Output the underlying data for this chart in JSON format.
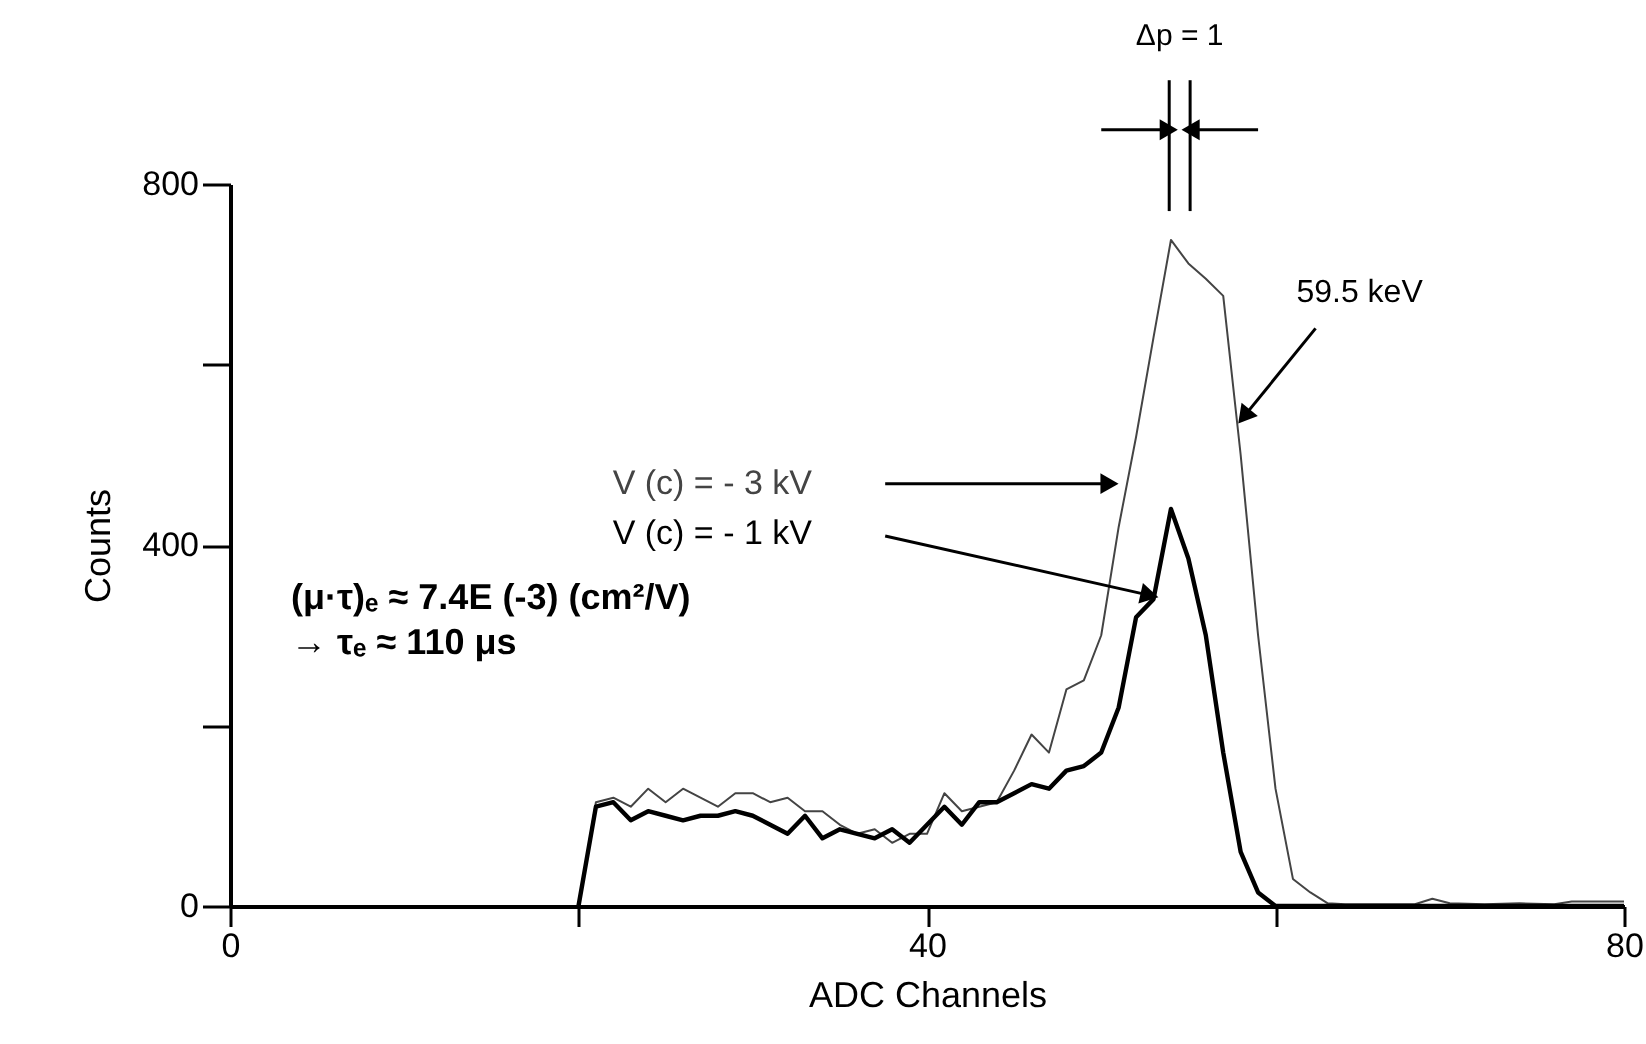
{
  "chart_data": {
    "type": "line",
    "xlabel": "ADC Channels",
    "ylabel": "Counts",
    "xlim": [
      0,
      80
    ],
    "xticks": [
      0,
      {
        "value": 20,
        "label": null
      },
      40,
      {
        "value": 60,
        "label": null
      },
      80
    ],
    "ylim": [
      0,
      800
    ],
    "yticks": [
      0,
      {
        "value": 200,
        "label": null
      },
      400,
      {
        "value": 600,
        "label": null
      },
      800
    ],
    "grid": false,
    "legend": false,
    "marker": "none",
    "line_style": "solid",
    "series": [
      {
        "name": "V (c) = - 3 kV",
        "color": "#444444",
        "x": [
          20,
          21,
          22,
          23,
          24,
          25,
          26,
          27,
          28,
          29,
          30,
          31,
          32,
          33,
          34,
          35,
          36,
          37,
          38,
          39,
          40,
          41,
          42,
          43,
          44,
          45,
          46,
          47,
          48,
          49,
          50,
          51,
          52,
          53,
          54,
          55,
          56,
          57,
          58,
          59,
          60,
          61,
          62,
          63,
          64,
          66,
          68,
          69,
          70,
          72,
          74,
          76,
          77,
          78,
          80
        ],
        "values": [
          0,
          115,
          120,
          110,
          130,
          115,
          130,
          120,
          110,
          125,
          125,
          115,
          120,
          105,
          105,
          90,
          80,
          85,
          70,
          80,
          80,
          125,
          105,
          110,
          115,
          150,
          190,
          170,
          240,
          250,
          300,
          420,
          520,
          630,
          738,
          712,
          695,
          676,
          500,
          300,
          130,
          30,
          15,
          3,
          2,
          2,
          2,
          8,
          3,
          2,
          3,
          2,
          5,
          5,
          5
        ]
      },
      {
        "name": "V (c) = - 1 kV",
        "color": "#000000",
        "x": [
          20,
          21,
          22,
          23,
          24,
          25,
          26,
          27,
          28,
          29,
          30,
          31,
          32,
          33,
          34,
          35,
          36,
          37,
          38,
          39,
          40,
          41,
          42,
          43,
          44,
          45,
          46,
          47,
          48,
          49,
          50,
          51,
          52,
          53,
          54,
          55,
          56,
          57,
          58,
          59,
          60,
          65,
          70,
          75,
          80
        ],
        "values": [
          0,
          110,
          115,
          95,
          105,
          100,
          95,
          100,
          100,
          105,
          100,
          90,
          80,
          100,
          75,
          85,
          80,
          75,
          85,
          70,
          90,
          110,
          90,
          115,
          115,
          125,
          135,
          130,
          150,
          155,
          170,
          220,
          320,
          340,
          440,
          385,
          300,
          170,
          60,
          15,
          0,
          0,
          0,
          0,
          0
        ]
      }
    ],
    "annotations": [
      "Δp = 1",
      {
        "text": "59.5 keV",
        "x": 58.3,
        "y": 545
      },
      "(μ·τ)ₑ ≈ 7.4E (-3) (cm²/V)",
      "→ τₑ ≈ 110 μs"
    ]
  }
}
